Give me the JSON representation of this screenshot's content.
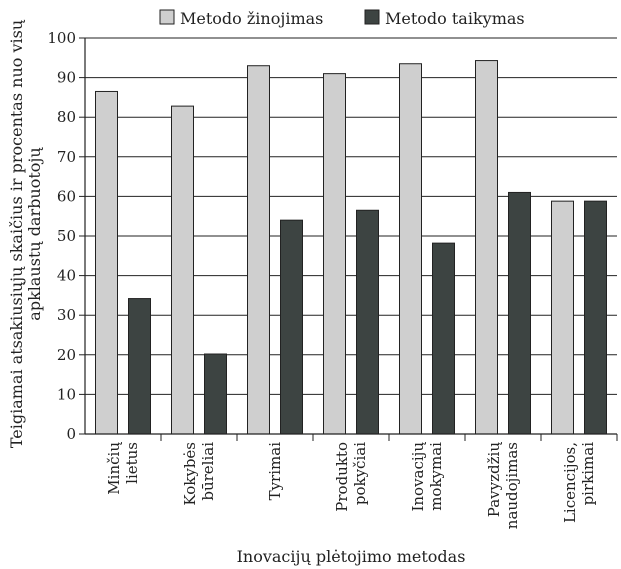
{
  "chart_data": {
    "type": "bar",
    "title": "",
    "xlabel": "Inovacijų plėtojimo metodas",
    "ylabel_lines": [
      "Teigiamai atsakiusiųjų skaičius ir procentas nuo visų",
      "apklaustų darbuotojų"
    ],
    "ylim": [
      0,
      100
    ],
    "yticks": [
      0,
      10,
      20,
      30,
      40,
      50,
      60,
      70,
      80,
      90,
      100
    ],
    "grid": "horizontal",
    "legend_position": "top",
    "categories": [
      [
        "Minčių",
        "lietus"
      ],
      [
        "Kokybės",
        "būreliai"
      ],
      [
        "Tyrimai"
      ],
      [
        "Produkto",
        "pokyčiai"
      ],
      [
        "Inovacijų",
        "mokymai"
      ],
      [
        "Pavyzdžių",
        "naudojimas"
      ],
      [
        "Licencijos,",
        "pirkimai"
      ]
    ],
    "series": [
      {
        "name": "Metodo žinojimas",
        "color": "#cfcfcf",
        "values": [
          86.5,
          82.8,
          93.0,
          91.0,
          93.5,
          94.3,
          58.8
        ]
      },
      {
        "name": "Metodo taikymas",
        "color": "#3d4442",
        "values": [
          34.2,
          20.2,
          54.0,
          56.5,
          48.2,
          61.0,
          58.8
        ]
      }
    ]
  }
}
